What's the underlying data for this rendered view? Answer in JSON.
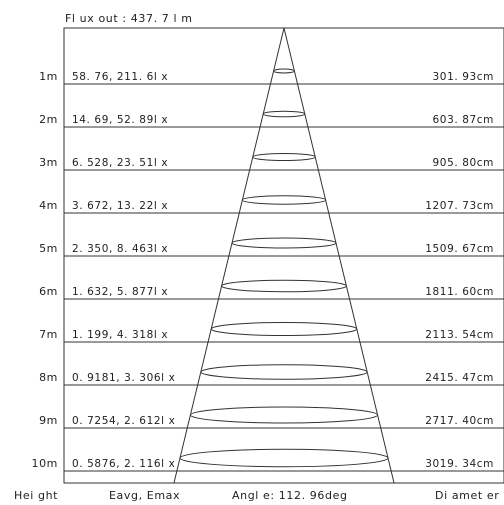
{
  "header": {
    "flux_label": "Fl ux out : 437. 7 l m"
  },
  "footer": {
    "height_label": "Hei ght",
    "eavg_emax_label": "Eavg, Emax",
    "angle_label": "Angl e: 112. 96deg",
    "diameter_label": "Di amet er"
  },
  "rows": [
    {
      "height": "1m",
      "illuminance": "58. 76, 211. 6l x",
      "diameter": "301. 93cm",
      "diameter_cm": 301.93
    },
    {
      "height": "2m",
      "illuminance": "14. 69, 52. 89l x",
      "diameter": "603. 87cm",
      "diameter_cm": 603.87
    },
    {
      "height": "3m",
      "illuminance": "6. 528, 23. 51l x",
      "diameter": "905. 80cm",
      "diameter_cm": 905.8
    },
    {
      "height": "4m",
      "illuminance": "3. 672, 13. 22l x",
      "diameter": "1207. 73cm",
      "diameter_cm": 1207.73
    },
    {
      "height": "5m",
      "illuminance": "2. 350, 8. 463l x",
      "diameter": "1509. 67cm",
      "diameter_cm": 1509.67
    },
    {
      "height": "6m",
      "illuminance": "1. 632, 5. 877l x",
      "diameter": "1811. 60cm",
      "diameter_cm": 1811.6
    },
    {
      "height": "7m",
      "illuminance": "1. 199, 4. 318l x",
      "diameter": "2113. 54cm",
      "diameter_cm": 2113.54
    },
    {
      "height": "8m",
      "illuminance": "0. 9181, 3. 306l x",
      "diameter": "2415. 47cm",
      "diameter_cm": 2415.47
    },
    {
      "height": "9m",
      "illuminance": "0. 7254, 2. 612l x",
      "diameter": "2717. 40cm",
      "diameter_cm": 2717.4
    },
    {
      "height": "10m",
      "illuminance": "0. 5876, 2. 116l x",
      "diameter": "3019. 34cm",
      "diameter_cm": 3019.34
    }
  ]
}
